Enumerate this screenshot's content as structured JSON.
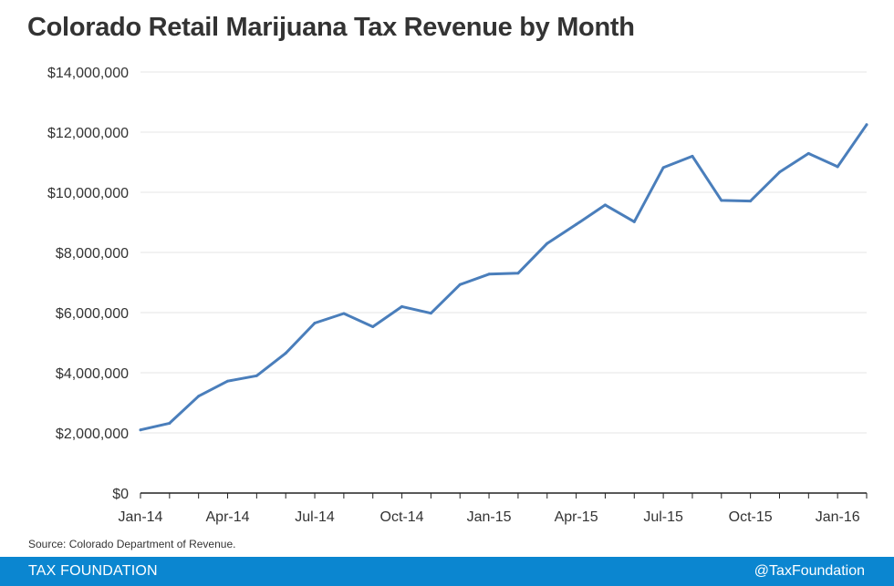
{
  "title": "Colorado Retail Marijuana Tax Revenue by Month",
  "source": "Source: Colorado Department of Revenue.",
  "footer": {
    "brand": "TAX FOUNDATION",
    "handle": "@TaxFoundation"
  },
  "colors": {
    "line": "#4a7ebb",
    "footer": "#0b86d0",
    "grid": "#e6e6e6",
    "text": "#333333"
  },
  "chart_data": {
    "type": "line",
    "title": "Colorado Retail Marijuana Tax Revenue by Month",
    "xlabel": "",
    "ylabel": "",
    "x": [
      "Jan-14",
      "Feb-14",
      "Mar-14",
      "Apr-14",
      "May-14",
      "Jun-14",
      "Jul-14",
      "Aug-14",
      "Sep-14",
      "Oct-14",
      "Nov-14",
      "Dec-14",
      "Jan-15",
      "Feb-15",
      "Mar-15",
      "Apr-15",
      "May-15",
      "Jun-15",
      "Jul-15",
      "Aug-15",
      "Sep-15",
      "Oct-15",
      "Nov-15",
      "Dec-15",
      "Jan-16",
      "Feb-16"
    ],
    "series": [
      {
        "values": [
          2100000,
          2320000,
          3220000,
          3720000,
          3900000,
          4650000,
          5650000,
          5970000,
          5530000,
          6200000,
          5980000,
          6930000,
          7280000,
          7310000,
          8300000,
          8930000,
          9580000,
          9020000,
          10820000,
          11200000,
          9730000,
          9710000,
          10670000,
          11290000,
          10850000,
          12250000
        ]
      }
    ],
    "x_tick_labels": [
      "Jan-14",
      "Apr-14",
      "Jul-14",
      "Oct-14",
      "Jan-15",
      "Apr-15",
      "Jul-15",
      "Oct-15",
      "Jan-16"
    ],
    "y_tick_labels": [
      "$0",
      "$2,000,000",
      "$4,000,000",
      "$6,000,000",
      "$8,000,000",
      "$10,000,000",
      "$12,000,000",
      "$14,000,000"
    ],
    "y_ticks": [
      0,
      2000000,
      4000000,
      6000000,
      8000000,
      10000000,
      12000000,
      14000000
    ],
    "ylim": [
      0,
      14000000
    ],
    "grid": true,
    "legend": "none"
  }
}
